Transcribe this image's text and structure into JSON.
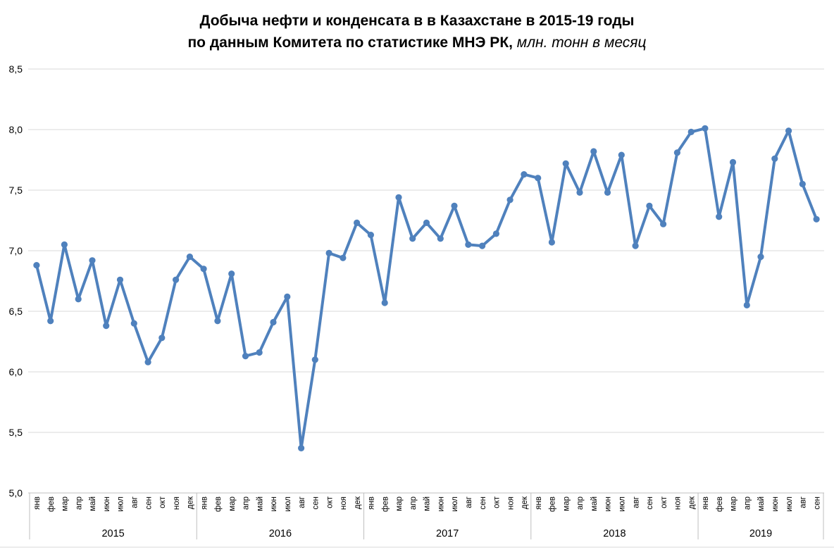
{
  "title": {
    "line1": "Добыча нефти и конденсата в в Казахстане в 2015-19 годы",
    "line2_bold": "по данным Комитета по статистике МНЭ РК,",
    "line2_italic": " млн. тонн в месяц"
  },
  "colors": {
    "series_line": "#4F81BD",
    "gridline": "#D9D9D9",
    "axis_frame": "#BFBFBF",
    "text": "#000000"
  },
  "chart_data": {
    "type": "line",
    "title": "Добыча нефти и конденсата в в Казахстане в 2015-19 годы по данным Комитета по статистике МНЭ РК, млн. тонн в месяц",
    "unit": "млн. тонн в месяц",
    "ylim": [
      5.0,
      8.5
    ],
    "ytick_step": 0.5,
    "ytick_labels": [
      "5,0",
      "5,5",
      "6,0",
      "6,5",
      "7,0",
      "7,5",
      "8,0",
      "8,5"
    ],
    "grid": true,
    "legend": "none",
    "series_name": "Добыча нефти и конденсата",
    "years": [
      {
        "label": "2015",
        "months": [
          "янв",
          "фев",
          "мар",
          "апр",
          "май",
          "июн",
          "июл",
          "авг",
          "сен",
          "окт",
          "ноя",
          "дек"
        ],
        "values": [
          6.88,
          6.42,
          7.05,
          6.6,
          6.92,
          6.38,
          6.76,
          6.4,
          6.08,
          6.28,
          6.76,
          6.95
        ]
      },
      {
        "label": "2016",
        "months": [
          "янв",
          "фев",
          "мар",
          "апр",
          "май",
          "июн",
          "июл",
          "авг",
          "сен",
          "окт",
          "ноя",
          "дек"
        ],
        "values": [
          6.85,
          6.42,
          6.81,
          6.13,
          6.16,
          6.41,
          6.62,
          5.37,
          6.1,
          6.98,
          6.94,
          7.23
        ]
      },
      {
        "label": "2017",
        "months": [
          "янв",
          "фев",
          "мар",
          "апр",
          "май",
          "июн",
          "июл",
          "авг",
          "сен",
          "окт",
          "ноя",
          "дек"
        ],
        "values": [
          7.13,
          6.57,
          7.44,
          7.1,
          7.23,
          7.1,
          7.37,
          7.05,
          7.04,
          7.14,
          7.42,
          7.63
        ]
      },
      {
        "label": "2018",
        "months": [
          "янв",
          "фев",
          "мар",
          "апр",
          "май",
          "июн",
          "июл",
          "авг",
          "сен",
          "окт",
          "ноя",
          "дек"
        ],
        "values": [
          7.6,
          7.07,
          7.72,
          7.48,
          7.82,
          7.48,
          7.79,
          7.04,
          7.37,
          7.22,
          7.81,
          7.98
        ]
      },
      {
        "label": "2019",
        "months": [
          "янв",
          "фев",
          "мар",
          "апр",
          "май",
          "июн",
          "июл",
          "авг",
          "сен"
        ],
        "values": [
          8.01,
          7.28,
          7.73,
          6.55,
          6.95,
          7.76,
          7.99,
          7.55,
          7.26
        ]
      }
    ]
  }
}
